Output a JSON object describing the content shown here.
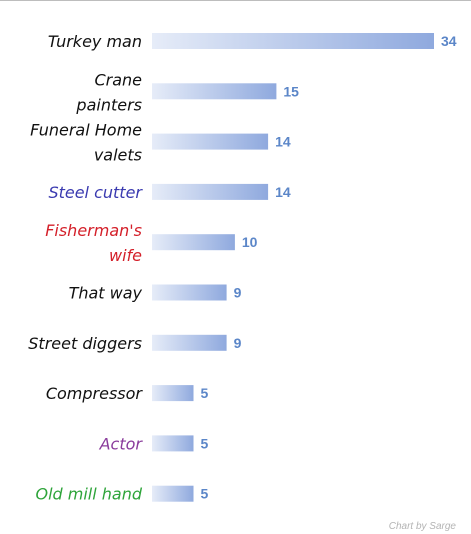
{
  "chart_data": {
    "type": "bar",
    "orientation": "horizontal",
    "categories": [
      "Turkey man",
      "Crane painters",
      "Funeral Home valets",
      "Steel cutter",
      "Fisherman's wife",
      "That way",
      "Street diggers",
      "Compressor",
      "Actor",
      "Old mill hand"
    ],
    "values": [
      34,
      15,
      14,
      14,
      10,
      9,
      9,
      5,
      5,
      5
    ],
    "label_colors": [
      "#111111",
      "#111111",
      "#111111",
      "#3a3ab0",
      "#d4202a",
      "#111111",
      "#111111",
      "#111111",
      "#8a3c9c",
      "#2ea43a"
    ],
    "bar_gradient": [
      "#e6ecf8",
      "#8fa9de"
    ],
    "value_label_color": "#5b86c8",
    "xlim": [
      0,
      34
    ],
    "grid": false,
    "credit": "Chart by Sarge"
  }
}
